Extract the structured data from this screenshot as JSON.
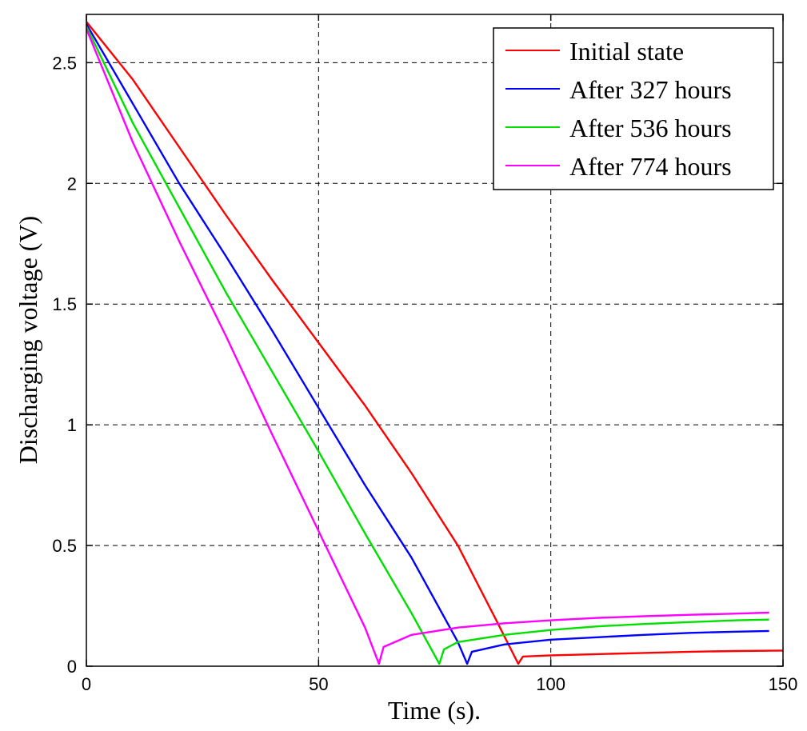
{
  "chart_data": {
    "type": "line",
    "title": "",
    "xlabel": "Time (s).",
    "ylabel": "Discharging voltage (V)",
    "xlim": [
      0,
      150
    ],
    "ylim": [
      0,
      2.7
    ],
    "xticks": [
      0,
      50,
      100,
      150
    ],
    "xtick_labels": [
      "0",
      "50",
      "100",
      "150"
    ],
    "yticks": [
      0,
      0.5,
      1,
      1.5,
      2,
      2.5
    ],
    "ytick_labels": [
      "0",
      "0.5",
      "1",
      "1.5",
      "2",
      "2.5"
    ],
    "grid": true,
    "legend_position": "top-right",
    "series": [
      {
        "name": "Initial state",
        "color": "#ff0000",
        "points": [
          [
            0,
            2.67
          ],
          [
            10,
            2.43
          ],
          [
            20,
            2.15
          ],
          [
            30,
            1.87
          ],
          [
            40,
            1.6
          ],
          [
            50,
            1.34
          ],
          [
            60,
            1.08
          ],
          [
            70,
            0.8
          ],
          [
            80,
            0.5
          ],
          [
            88,
            0.2
          ],
          [
            93,
            0.01
          ],
          [
            94,
            0.04
          ],
          [
            100,
            0.045
          ],
          [
            110,
            0.05
          ],
          [
            120,
            0.055
          ],
          [
            130,
            0.06
          ],
          [
            140,
            0.063
          ],
          [
            150,
            0.065
          ]
        ]
      },
      {
        "name": "After 327 hours",
        "color": "#0000ff",
        "points": [
          [
            0,
            2.66
          ],
          [
            10,
            2.33
          ],
          [
            20,
            2.0
          ],
          [
            30,
            1.7
          ],
          [
            40,
            1.39
          ],
          [
            50,
            1.07
          ],
          [
            60,
            0.75
          ],
          [
            70,
            0.45
          ],
          [
            80,
            0.1
          ],
          [
            82,
            0.01
          ],
          [
            83,
            0.06
          ],
          [
            90,
            0.09
          ],
          [
            100,
            0.11
          ],
          [
            110,
            0.12
          ],
          [
            120,
            0.13
          ],
          [
            130,
            0.138
          ],
          [
            140,
            0.143
          ],
          [
            147,
            0.146
          ]
        ]
      },
      {
        "name": "After 536 hours",
        "color": "#00e000",
        "points": [
          [
            0,
            2.65
          ],
          [
            10,
            2.25
          ],
          [
            20,
            1.9
          ],
          [
            30,
            1.55
          ],
          [
            40,
            1.22
          ],
          [
            50,
            0.89
          ],
          [
            60,
            0.55
          ],
          [
            70,
            0.22
          ],
          [
            76,
            0.01
          ],
          [
            77,
            0.07
          ],
          [
            80,
            0.1
          ],
          [
            90,
            0.13
          ],
          [
            100,
            0.15
          ],
          [
            110,
            0.165
          ],
          [
            120,
            0.175
          ],
          [
            130,
            0.183
          ],
          [
            140,
            0.19
          ],
          [
            147,
            0.193
          ]
        ]
      },
      {
        "name": "After 774 hours",
        "color": "#ff00ff",
        "points": [
          [
            0,
            2.64
          ],
          [
            10,
            2.17
          ],
          [
            20,
            1.76
          ],
          [
            30,
            1.37
          ],
          [
            40,
            0.96
          ],
          [
            50,
            0.56
          ],
          [
            60,
            0.16
          ],
          [
            63,
            0.01
          ],
          [
            64,
            0.08
          ],
          [
            70,
            0.13
          ],
          [
            80,
            0.16
          ],
          [
            90,
            0.178
          ],
          [
            100,
            0.19
          ],
          [
            110,
            0.2
          ],
          [
            120,
            0.207
          ],
          [
            130,
            0.213
          ],
          [
            140,
            0.218
          ],
          [
            147,
            0.222
          ]
        ]
      }
    ]
  }
}
